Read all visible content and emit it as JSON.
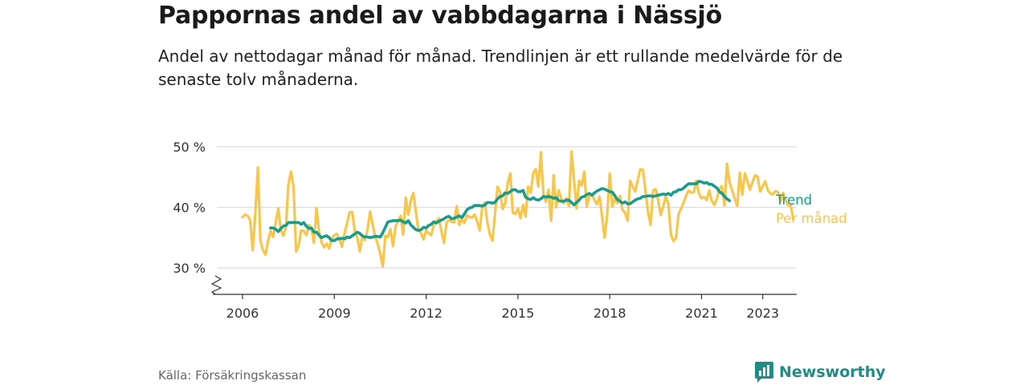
{
  "header": {
    "title": "Pappornas andel av vabbdagarna i Nässjö",
    "subtitle": "Andel av nettodagar månad för månad. Trendlinjen är ett rullande medelvärde för de senaste tolv månaderna."
  },
  "footer": {
    "source": "Källa: Försäkringskassan",
    "brand": "Newsworthy"
  },
  "colors": {
    "trend": "#1a9b8c",
    "monthly": "#f7c64a",
    "grid": "#dddddd",
    "brand": "#1f8c85"
  },
  "chart_data": {
    "type": "line",
    "title": "Pappornas andel av vabbdagarna i Nässjö",
    "x_ticks": [
      "2006",
      "2009",
      "2012",
      "2015",
      "2018",
      "2021",
      "2023"
    ],
    "y_ticks": [
      "30 %",
      "40 %",
      "50 %"
    ],
    "ylim": [
      30,
      50
    ],
    "xlim": [
      "2005-01",
      "2024-02"
    ],
    "grid": true,
    "legend": "inline-end",
    "axis_break": true,
    "series": [
      {
        "name": "Trend",
        "start": "2006-12",
        "values": [
          36.6,
          36.6,
          36.4,
          36.0,
          36.5,
          36.9,
          37.0,
          37.5,
          37.5,
          37.5,
          37.5,
          37.5,
          37.2,
          37.5,
          36.9,
          36.5,
          36.6,
          35.9,
          35.9,
          35.4,
          35.0,
          35.2,
          35.3,
          35.0,
          34.5,
          34.5,
          34.8,
          34.8,
          34.9,
          34.8,
          35.1,
          35.0,
          35.3,
          35.6,
          35.9,
          35.7,
          35.3,
          35.1,
          35.1,
          35.0,
          35.1,
          35.2,
          35.2,
          35.1,
          35.8,
          36.7,
          37.6,
          37.7,
          37.8,
          37.8,
          37.8,
          37.9,
          37.6,
          37.4,
          37.8,
          37.1,
          36.7,
          36.3,
          36.2,
          36.3,
          36.7,
          36.6,
          37.0,
          37.2,
          37.6,
          37.4,
          37.7,
          37.9,
          38.1,
          38.4,
          38.5,
          38.1,
          38.2,
          38.4,
          38.6,
          38.3,
          38.9,
          39.6,
          39.9,
          40.0,
          40.3,
          40.3,
          40.3,
          40.2,
          40.4,
          40.8,
          40.8,
          40.7,
          40.8,
          41.4,
          41.8,
          41.9,
          42.4,
          42.3,
          42.6,
          42.9,
          42.9,
          42.6,
          42.6,
          42.8,
          41.7,
          41.4,
          41.3,
          41.6,
          41.3,
          41.2,
          41.4,
          41.8,
          41.7,
          41.8,
          41.7,
          41.5,
          41.6,
          41.1,
          41.0,
          41.0,
          41.2,
          41.2,
          40.8,
          40.4,
          40.8,
          41.2,
          41.7,
          41.8,
          42.1,
          42.3,
          42.0,
          42.4,
          42.7,
          42.9,
          43.1,
          43.0,
          42.8,
          42.6,
          42.5,
          41.9,
          41.3,
          41.0,
          40.7,
          40.9,
          40.6,
          40.6,
          40.9,
          41.2,
          41.4,
          41.5,
          41.8,
          41.8,
          41.9,
          41.9,
          41.8,
          41.9,
          42.0,
          42.1,
          42.2,
          42.1,
          42.3,
          42.0,
          42.5,
          42.6,
          42.9,
          42.9,
          43.2,
          43.6,
          43.9,
          43.9,
          43.9,
          43.9,
          44.3,
          44.2,
          44.0,
          44.1,
          43.8,
          43.8,
          43.5,
          43.2,
          42.6,
          42.3,
          41.8,
          41.4,
          41.1
        ]
      },
      {
        "name": "Per månad",
        "start": "2006-01",
        "values": [
          38.4,
          38.8,
          38.6,
          37.9,
          32.9,
          39.0,
          46.6,
          34.6,
          32.9,
          32.2,
          34.4,
          36.1,
          35.1,
          37.5,
          39.8,
          36.4,
          35.3,
          36.7,
          43.8,
          45.9,
          43.4,
          32.7,
          33.7,
          36.2,
          36.1,
          35.4,
          37.1,
          36.5,
          34.1,
          39.9,
          35.9,
          34.2,
          33.4,
          34.0,
          33.2,
          34.8,
          35.4,
          35.6,
          34.8,
          33.5,
          35.7,
          37.4,
          39.2,
          39.2,
          36.1,
          35.0,
          32.7,
          35.2,
          34.6,
          36.3,
          39.3,
          37.2,
          35.2,
          34.0,
          32.3,
          30.2,
          35.3,
          35.1,
          36.4,
          33.6,
          36.8,
          37.8,
          38.6,
          35.5,
          41.6,
          38.8,
          41.2,
          42.4,
          39.2,
          36.1,
          35.8,
          34.7,
          36.2,
          35.7,
          35.4,
          37.2,
          37.7,
          38.2,
          36.1,
          34.1,
          37.5,
          37.9,
          37.6,
          37.5,
          40.2,
          37.1,
          38.0,
          37.4,
          38.7,
          38.4,
          38.3,
          38.8,
          37.7,
          36.2,
          40.0,
          40.8,
          37.6,
          35.5,
          34.5,
          38.8,
          43.4,
          42.5,
          39.7,
          40.6,
          44.0,
          45.6,
          39.1,
          38.9,
          39.8,
          38.2,
          40.4,
          38.5,
          43.4,
          42.4,
          45.7,
          46.3,
          43.4,
          49.1,
          42.2,
          40.9,
          42.9,
          37.8,
          45.3,
          40.0,
          42.8,
          41.4,
          40.7,
          41.5,
          40.2,
          49.2,
          44.6,
          39.8,
          44.4,
          43.6,
          45.9,
          40.1,
          41.9,
          42.2,
          41.2,
          40.5,
          41.8,
          38.5,
          35.0,
          38.7,
          45.6,
          40.1,
          41.4,
          40.7,
          41.9,
          39.6,
          39.1,
          37.8,
          44.4,
          43.4,
          42.6,
          44.5,
          46.3,
          46.2,
          42.8,
          39.3,
          37.1,
          42.8,
          43.0,
          41.2,
          38.7,
          40.2,
          41.8,
          40.6,
          35.5,
          34.4,
          35.0,
          38.9,
          39.8,
          40.8,
          42.0,
          42.8,
          42.4,
          42.5,
          44.4,
          42.3,
          41.5,
          41.7,
          41.2,
          42.8,
          41.1,
          40.4,
          41.4,
          43.0,
          43.5,
          40.3,
          47.2,
          44.1,
          42.8,
          41.5,
          40.2,
          45.7,
          42.1,
          45.6,
          44.3,
          42.9,
          44.2,
          45.3,
          45.1,
          42.6,
          43.5,
          44.3,
          42.8,
          42.3,
          42.1,
          42.7,
          42.5,
          41.0,
          42.4,
          41.1,
          40.3,
          40.3,
          38.0
        ]
      }
    ],
    "labels": {
      "trend": "Trend",
      "monthly": "Per månad"
    }
  }
}
